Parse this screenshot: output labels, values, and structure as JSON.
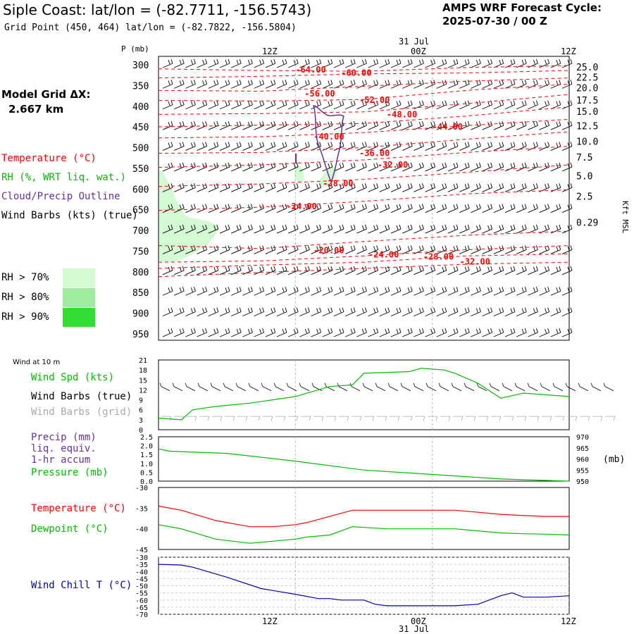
{
  "header": {
    "title": "Siple Coast:  lat/lon = (-82.7711, -156.5743)",
    "subtitle": "Grid Point (450, 464) lat/lon = (-82.7822, -156.5804)",
    "cycle_label": "AMPS WRF Forecast Cycle:",
    "cycle_value": "2025-07-30 / 00  Z",
    "model_grid_label": "Model Grid ΔX:",
    "model_grid_value": "2.667 km"
  },
  "legend": {
    "temperature": "Temperature (°C)",
    "rh": "RH (%, WRT liq. wat.)",
    "cloud": "Cloud/Precip Outline",
    "wind": "Wind Barbs (kts) (true)",
    "rh70": "RH > 70%",
    "rh80": "RH > 80%",
    "rh90": "RH > 90%",
    "rh_colors": [
      "#d4fad4",
      "#a0eba0",
      "#33dd33"
    ]
  },
  "colors": {
    "temp": "#ff0000",
    "rh": "#00bb00",
    "cloud": "#663399",
    "wind_chill": "#0000aa"
  },
  "time_axis": {
    "ticks": [
      "12Z",
      "00Z",
      "12Z"
    ],
    "date": "31 Jul"
  },
  "chart_data": [
    {
      "type": "line",
      "title": "",
      "ylabel": "P (mb)",
      "y2label": "Kft MSL",
      "pressure_levels": [
        300,
        350,
        400,
        450,
        500,
        550,
        600,
        650,
        700,
        750,
        800,
        850,
        900,
        950
      ],
      "height_ticks": [
        "25.0",
        "22.5",
        "20.0",
        "17.5",
        "15.0",
        "12.5",
        "10.0",
        "7.5",
        "5.0",
        "2.5",
        "0.29"
      ],
      "height_tick_p": [
        305,
        330,
        355,
        385,
        412,
        447,
        485,
        523,
        568,
        617,
        680
      ],
      "x_range_hours": [
        0,
        36
      ],
      "isotherms": [
        {
          "label": "-64.00",
          "lx": 12.0,
          "lp": 310,
          "p": [
            308,
            312,
            314,
            305,
            300
          ]
        },
        {
          "label": "-60.00",
          "lx": 16.0,
          "lp": 318,
          "p": [
            330,
            326,
            320,
            318,
            312
          ]
        },
        {
          "label": "-56.00",
          "lx": 12.8,
          "lp": 368,
          "p": [
            360,
            362,
            350,
            338,
            330
          ]
        },
        {
          "label": "-52.00",
          "lx": 17.6,
          "lp": 383,
          "p": [
            384,
            386,
            382,
            360,
            345
          ]
        },
        {
          "label": "-48.00",
          "lx": 20.0,
          "lp": 418,
          "p": [
            418,
            416,
            412,
            392,
            370
          ]
        },
        {
          "label": "-44.00",
          "lx": 24.0,
          "lp": 448,
          "p": [
            448,
            444,
            440,
            422,
            400
          ]
        },
        {
          "label": "-40.00",
          "lx": 13.6,
          "lp": 472,
          "p": [
            475,
            472,
            462,
            445,
            430
          ]
        },
        {
          "label": "-36.00",
          "lx": 17.6,
          "lp": 512,
          "p": [
            512,
            510,
            498,
            478,
            460
          ]
        },
        {
          "label": "-32.00",
          "lx": 19.2,
          "lp": 540,
          "p": [
            546,
            540,
            528,
            510,
            495
          ]
        },
        {
          "label": "-28.00",
          "lx": 14.4,
          "lp": 585,
          "p": [
            592,
            586,
            575,
            558,
            540
          ]
        },
        {
          "label": "-24.00",
          "lx": 11.2,
          "lp": 640,
          "p": [
            650,
            642,
            628,
            610,
            600
          ]
        },
        {
          "label": "-20.00",
          "lx": 13.6,
          "lp": 747,
          "p": [
            735,
            742,
            725,
            710,
            700
          ]
        },
        {
          "label": "-24.00",
          "lx": 18.4,
          "lp": 757,
          "p": [
            775,
            772,
            760,
            745,
            735
          ]
        },
        {
          "label": "-28.00",
          "lx": 23.2,
          "lp": 762,
          "p": [
            790,
            782,
            775,
            760,
            755
          ]
        },
        {
          "label": "-32.00",
          "lx": 26.4,
          "lp": 774,
          "p": [
            810,
            800,
            790,
            780,
            775
          ]
        }
      ],
      "rh_region": {
        "note": "RH > 70% shading near surface-to-600 mb, hours 0-5"
      },
      "cloud_outline_hours": [
        13.6,
        16.0
      ],
      "cloud_outline_p": [
        400,
        600
      ]
    },
    {
      "type": "line",
      "title": "Wind at 10 m",
      "series": [
        {
          "name": "Wind Spd (kts)",
          "x": [
            0,
            2,
            3,
            5,
            8,
            12,
            15,
            17,
            18,
            22,
            23,
            25,
            26,
            28,
            30,
            32,
            36
          ],
          "values": [
            3.5,
            3,
            6,
            7,
            8,
            10,
            13,
            13.5,
            17,
            17.5,
            18.5,
            18,
            17,
            14,
            9.5,
            11,
            10
          ]
        }
      ],
      "yticks": [
        0,
        3,
        6,
        9,
        12,
        15,
        18,
        21
      ],
      "ylim": [
        0,
        21
      ],
      "labels": [
        "Wind Spd (kts)",
        "Wind Barbs (true)",
        "Wind Barbs (grid)"
      ]
    },
    {
      "type": "line",
      "title": "",
      "series": [
        {
          "name": "Pressure (mb)",
          "x": [
            0,
            1,
            6,
            12,
            18,
            24,
            30,
            36
          ],
          "values": [
            964.5,
            963.5,
            962.5,
            959,
            955,
            953,
            951,
            950
          ]
        }
      ],
      "yticks_left": [
        "2.5",
        "2.0",
        "1.5",
        "1.0",
        "0.5",
        "0.0"
      ],
      "yticks_right": [
        "970",
        "965",
        "960",
        "955",
        "950"
      ],
      "ylim": [
        950,
        970
      ],
      "y2unit": "(mb)",
      "labels": [
        "Precip (mm)",
        "liq. equiv.",
        "1-hr accum",
        "Pressure (mb)"
      ]
    },
    {
      "type": "line",
      "title": "",
      "series": [
        {
          "name": "Temperature (°C)",
          "x": [
            0,
            2,
            5,
            8,
            10,
            12,
            13,
            15,
            17,
            20,
            22,
            24,
            26,
            28,
            30,
            32,
            34,
            36
          ],
          "values": [
            -34.5,
            -35.5,
            -38,
            -39.5,
            -39.5,
            -39,
            -38.5,
            -37,
            -35.5,
            -35.5,
            -35.5,
            -35.5,
            -35.5,
            -36,
            -36.5,
            -36.8,
            -37,
            -37
          ]
        },
        {
          "name": "Dewpoint (°C)",
          "x": [
            0,
            2,
            5,
            8,
            10,
            12,
            13,
            15,
            17,
            20,
            22,
            24,
            26,
            28,
            30,
            32,
            34,
            36
          ],
          "values": [
            -39,
            -40,
            -42.5,
            -43.5,
            -43,
            -42.5,
            -42,
            -41.5,
            -39.5,
            -40,
            -40,
            -40,
            -40,
            -40.5,
            -41,
            -41.2,
            -41.3,
            -41.5
          ]
        }
      ],
      "yticks": [
        -30,
        -35,
        -40,
        -45
      ],
      "ylim": [
        -45,
        -30
      ]
    },
    {
      "type": "line",
      "title": "",
      "series": [
        {
          "name": "Wind Chill T (°C)",
          "x": [
            0,
            2,
            3,
            6,
            9,
            12,
            14,
            15,
            16,
            18,
            19,
            20,
            22,
            24,
            26,
            28,
            30,
            31,
            32,
            34,
            36
          ],
          "values": [
            -35,
            -35.5,
            -37,
            -44,
            -52,
            -56,
            -59,
            -59,
            -60,
            -60,
            -63,
            -64,
            -64,
            -64,
            -64,
            -63,
            -57,
            -55,
            -58,
            -58,
            -57
          ]
        }
      ],
      "yticks": [
        -30,
        -35,
        -40,
        -45,
        -50,
        -55,
        -60,
        -65,
        -70
      ],
      "ylim": [
        -70,
        -30
      ]
    }
  ]
}
